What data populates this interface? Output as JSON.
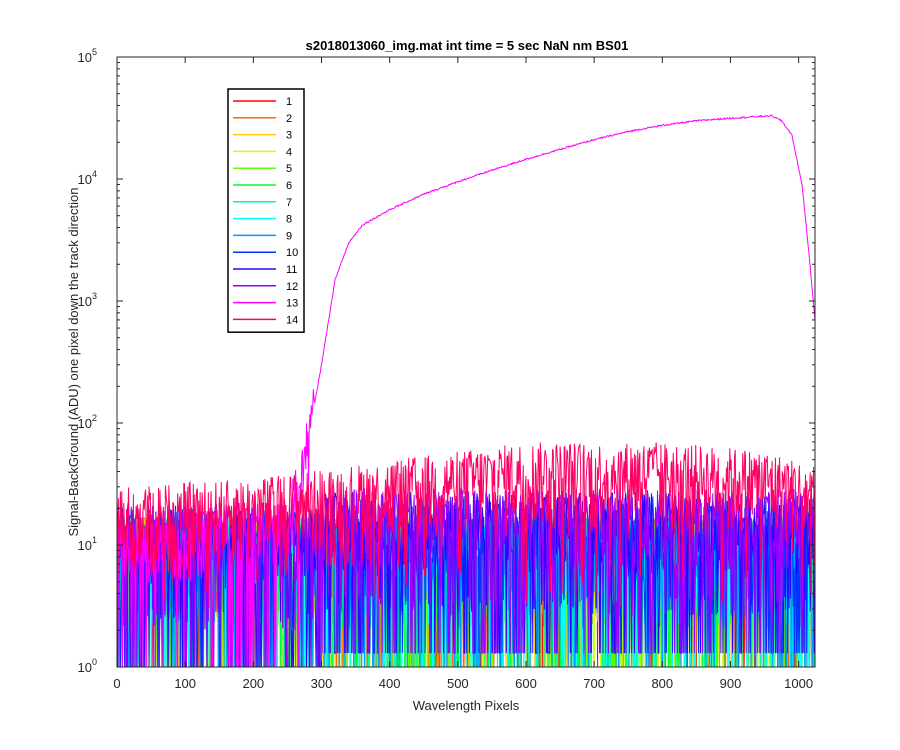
{
  "chart_data": {
    "type": "line",
    "title": "s2018013060_img.mat int time = 5 sec  NaN nm BS01",
    "xlabel": "Wavelength Pixels",
    "ylabel": "Signal-BackGround (ADU) one pixel down the track direction",
    "xlim": [
      0,
      1024
    ],
    "ylim": [
      1,
      100000
    ],
    "yscale": "log",
    "grid": false,
    "legend_position": "top-left",
    "x_ticks": [
      "0",
      "100",
      "200",
      "300",
      "400",
      "500",
      "600",
      "700",
      "800",
      "900",
      "1000"
    ],
    "y_ticks": [
      {
        "base": "10",
        "exp": "0"
      },
      {
        "base": "10",
        "exp": "1"
      },
      {
        "base": "10",
        "exp": "2"
      },
      {
        "base": "10",
        "exp": "3"
      },
      {
        "base": "10",
        "exp": "4"
      },
      {
        "base": "10",
        "exp": "5"
      }
    ],
    "series": [
      {
        "name": "1",
        "color": "#ff0000",
        "level": 12,
        "max": 30
      },
      {
        "name": "2",
        "color": "#ff6600",
        "level": 12,
        "max": 30
      },
      {
        "name": "3",
        "color": "#ffcc00",
        "level": 12,
        "max": 35
      },
      {
        "name": "4",
        "color": "#ccff00",
        "level": 12,
        "max": 30
      },
      {
        "name": "5",
        "color": "#66ff00",
        "level": 12,
        "max": 30
      },
      {
        "name": "6",
        "color": "#00ff33",
        "level": 12,
        "max": 30
      },
      {
        "name": "7",
        "color": "#00ff99",
        "level": 12,
        "max": 30
      },
      {
        "name": "8",
        "color": "#00ffff",
        "level": 12,
        "max": 30
      },
      {
        "name": "9",
        "color": "#0099ff",
        "level": 12,
        "max": 35
      },
      {
        "name": "10",
        "color": "#0033ff",
        "level": 14,
        "max": 45
      },
      {
        "name": "11",
        "color": "#3300ff",
        "level": 15,
        "max": 50
      },
      {
        "name": "12",
        "color": "#9900ff",
        "level": 16,
        "max": 50
      },
      {
        "name": "13",
        "color": "#ff00ff",
        "level": 15,
        "max": 40,
        "signal": [
          {
            "x": 0,
            "y": 10
          },
          {
            "x": 250,
            "y": 15
          },
          {
            "x": 270,
            "y": 40
          },
          {
            "x": 280,
            "y": 70
          },
          {
            "x": 300,
            "y": 300
          },
          {
            "x": 320,
            "y": 1500
          },
          {
            "x": 340,
            "y": 3000
          },
          {
            "x": 360,
            "y": 4200
          },
          {
            "x": 400,
            "y": 5600
          },
          {
            "x": 450,
            "y": 7500
          },
          {
            "x": 500,
            "y": 9500
          },
          {
            "x": 550,
            "y": 11800
          },
          {
            "x": 600,
            "y": 14500
          },
          {
            "x": 650,
            "y": 17500
          },
          {
            "x": 700,
            "y": 21000
          },
          {
            "x": 750,
            "y": 24500
          },
          {
            "x": 800,
            "y": 27500
          },
          {
            "x": 850,
            "y": 30000
          },
          {
            "x": 900,
            "y": 31500
          },
          {
            "x": 940,
            "y": 32500
          },
          {
            "x": 960,
            "y": 33000
          },
          {
            "x": 975,
            "y": 30000
          },
          {
            "x": 990,
            "y": 23000
          },
          {
            "x": 1005,
            "y": 9000
          },
          {
            "x": 1015,
            "y": 2500
          },
          {
            "x": 1024,
            "y": 700
          }
        ]
      },
      {
        "name": "14",
        "color": "#ff0066",
        "level": 22,
        "envelope": [
          {
            "x": 0,
            "y": 30
          },
          {
            "x": 200,
            "y": 35
          },
          {
            "x": 400,
            "y": 50
          },
          {
            "x": 600,
            "y": 70
          },
          {
            "x": 800,
            "y": 70
          },
          {
            "x": 950,
            "y": 60
          },
          {
            "x": 1024,
            "y": 45
          }
        ]
      }
    ]
  }
}
